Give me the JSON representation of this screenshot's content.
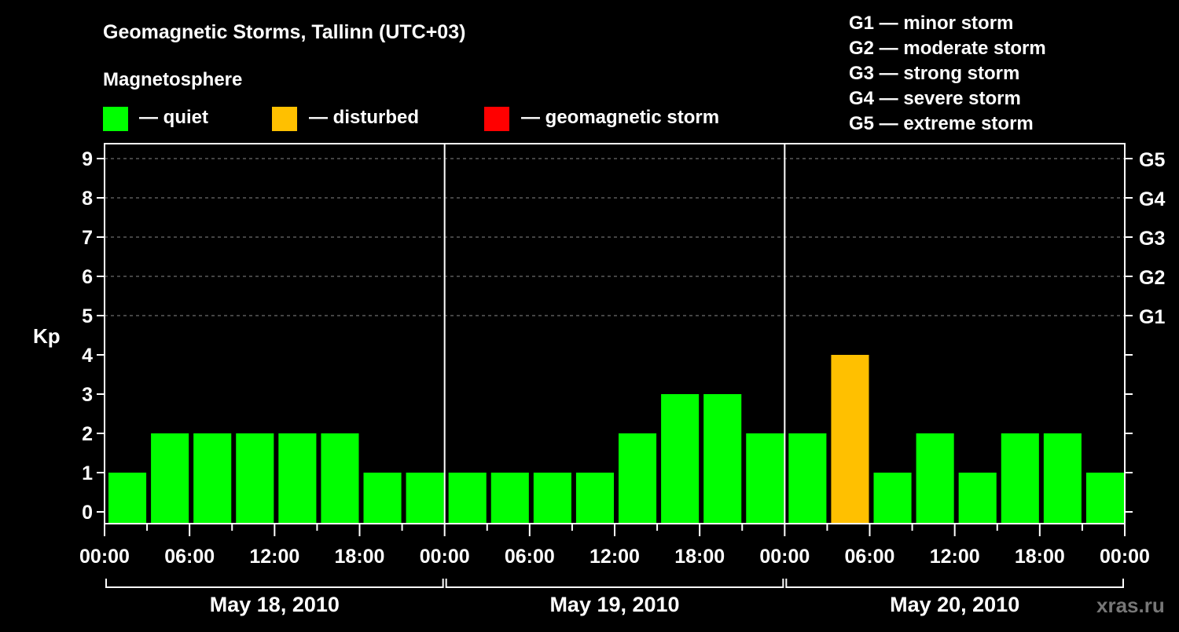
{
  "chart_data": {
    "type": "bar",
    "title": "Geomagnetic Storms, Tallinn (UTC+03)",
    "legend_title": "Magnetosphere",
    "legend": [
      {
        "label": "— quiet",
        "color": "#00ff00"
      },
      {
        "label": "— disturbed",
        "color": "#ffc000"
      },
      {
        "label": "— geomagnetic storm",
        "color": "#ff0000"
      }
    ],
    "scale_legend": [
      "G1 — minor storm",
      "G2 — moderate storm",
      "G3 — strong storm",
      "G4 — severe storm",
      "G5 — extreme storm"
    ],
    "ylabel": "Kp",
    "ylim": [
      0,
      9
    ],
    "yticks": [
      "0",
      "1",
      "2",
      "3",
      "4",
      "5",
      "6",
      "7",
      "8",
      "9"
    ],
    "right_ticks": [
      {
        "kp": 5,
        "label": "G1"
      },
      {
        "kp": 6,
        "label": "G2"
      },
      {
        "kp": 7,
        "label": "G3"
      },
      {
        "kp": 8,
        "label": "G4"
      },
      {
        "kp": 9,
        "label": "G5"
      }
    ],
    "xticks": [
      "00:00",
      "06:00",
      "12:00",
      "18:00",
      "00:00",
      "06:00",
      "12:00",
      "18:00",
      "00:00",
      "06:00",
      "12:00",
      "18:00",
      "00:00"
    ],
    "days": [
      "May 18, 2010",
      "May 19, 2010",
      "May 20, 2010"
    ],
    "interval_hours": 3,
    "values": [
      1,
      2,
      2,
      2,
      2,
      2,
      1,
      1,
      1,
      1,
      1,
      1,
      2,
      3,
      3,
      2,
      2,
      4,
      1,
      2,
      1,
      2,
      2,
      1
    ],
    "grid": "dashed at Kp 5-9",
    "watermark": "xras.ru"
  }
}
